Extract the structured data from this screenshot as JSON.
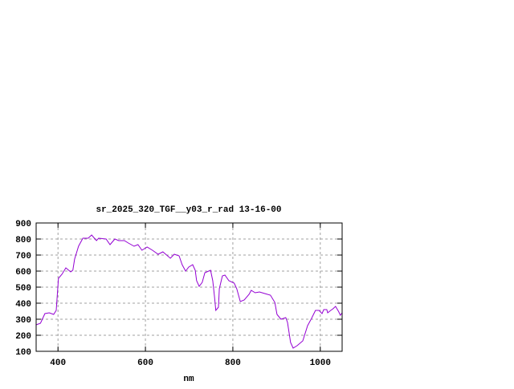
{
  "chart_data": {
    "type": "line",
    "title": "sr_2025_320_TGF__y03_r_rad 13-16-00",
    "xlabel": "nm",
    "ylabel": "",
    "xlim": [
      350,
      1050
    ],
    "ylim": [
      100,
      900
    ],
    "xticks": [
      400,
      600,
      800,
      1000
    ],
    "yticks": [
      100,
      200,
      300,
      400,
      500,
      600,
      700,
      800,
      900
    ],
    "grid": true,
    "line_color": "#9400d3",
    "series": [
      {
        "x": [
          350,
          360,
          370,
          380,
          390,
          396,
          401,
          409,
          418,
          429,
          434,
          438,
          447,
          457,
          469,
          477,
          488,
          493,
          510,
          519,
          530,
          539,
          552,
          561,
          574,
          583,
          592,
          604,
          616,
          629,
          640,
          657,
          666,
          677,
          684,
          692,
          699,
          708,
          714,
          717,
          723,
          730,
          736,
          749,
          754,
          758,
          761,
          767,
          769,
          776,
          782,
          791,
          803,
          809,
          817,
          826,
          837,
          842,
          851,
          861,
          873,
          886,
          896,
          901,
          910,
          921,
          925,
          932,
          938,
          947,
          960,
          971,
          980,
          989,
          997,
          1004,
          1008,
          1015,
          1017,
          1024,
          1029,
          1035,
          1042,
          1046,
          1050
        ],
        "y": [
          265,
          275,
          335,
          340,
          330,
          355,
          555,
          580,
          620,
          595,
          605,
          675,
          755,
          805,
          805,
          825,
          790,
          805,
          800,
          765,
          800,
          790,
          790,
          775,
          755,
          765,
          730,
          750,
          730,
          705,
          720,
          680,
          705,
          695,
          640,
          600,
          625,
          640,
          605,
          540,
          505,
          530,
          590,
          605,
          540,
          440,
          355,
          375,
          490,
          570,
          575,
          540,
          525,
          490,
          410,
          420,
          455,
          480,
          465,
          470,
          460,
          450,
          405,
          330,
          300,
          310,
          280,
          155,
          120,
          135,
          165,
          260,
          305,
          355,
          355,
          335,
          360,
          360,
          340,
          355,
          365,
          380,
          348,
          325,
          340
        ]
      }
    ]
  }
}
